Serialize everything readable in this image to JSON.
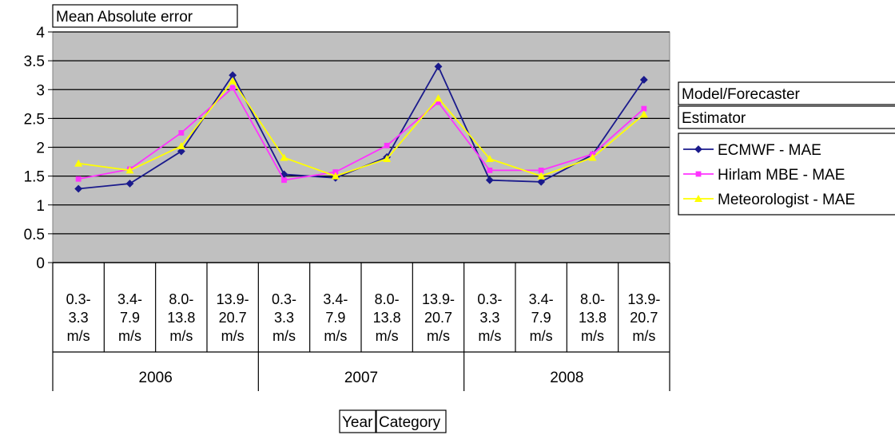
{
  "chart_data": {
    "type": "line",
    "title": "Mean Absolute error",
    "ylim": [
      0,
      4
    ],
    "yticks": [
      "0",
      "0.5",
      "1",
      "1.5",
      "2",
      "2.5",
      "3",
      "3.5",
      "4"
    ],
    "grid": true,
    "legend_position": "right",
    "legend_header": [
      "Model/Forecaster",
      "Estimator"
    ],
    "axis_field_buttons": [
      "Year",
      "Category"
    ],
    "years": [
      "2006",
      "2007",
      "2008"
    ],
    "categories": [
      [
        "0.3-",
        "3.3",
        "m/s"
      ],
      [
        "3.4-",
        "7.9",
        "m/s"
      ],
      [
        "8.0-",
        "13.8",
        "m/s"
      ],
      [
        "13.9-",
        "20.7",
        "m/s"
      ],
      [
        "0.3-",
        "3.3",
        "m/s"
      ],
      [
        "3.4-",
        "7.9",
        "m/s"
      ],
      [
        "8.0-",
        "13.8",
        "m/s"
      ],
      [
        "13.9-",
        "20.7",
        "m/s"
      ],
      [
        "0.3-",
        "3.3",
        "m/s"
      ],
      [
        "3.4-",
        "7.9",
        "m/s"
      ],
      [
        "8.0-",
        "13.8",
        "m/s"
      ],
      [
        "13.9-",
        "20.7",
        "m/s"
      ]
    ],
    "series": [
      {
        "name": "ECMWF - MAE",
        "color": "#1a1a8c",
        "marker": "diamond",
        "values": [
          1.28,
          1.37,
          1.93,
          3.25,
          1.53,
          1.47,
          1.83,
          3.4,
          1.43,
          1.4,
          1.87,
          3.17
        ]
      },
      {
        "name": "Hirlam MBE - MAE",
        "color": "#ff33ff",
        "marker": "square",
        "values": [
          1.45,
          1.62,
          2.25,
          3.03,
          1.43,
          1.57,
          2.03,
          2.78,
          1.6,
          1.6,
          1.88,
          2.67
        ]
      },
      {
        "name": "Meteorologist - MAE",
        "color": "#ffff00",
        "marker": "triangle",
        "values": [
          1.72,
          1.6,
          2.02,
          3.15,
          1.82,
          1.5,
          1.8,
          2.85,
          1.8,
          1.5,
          1.82,
          2.57
        ]
      }
    ]
  }
}
